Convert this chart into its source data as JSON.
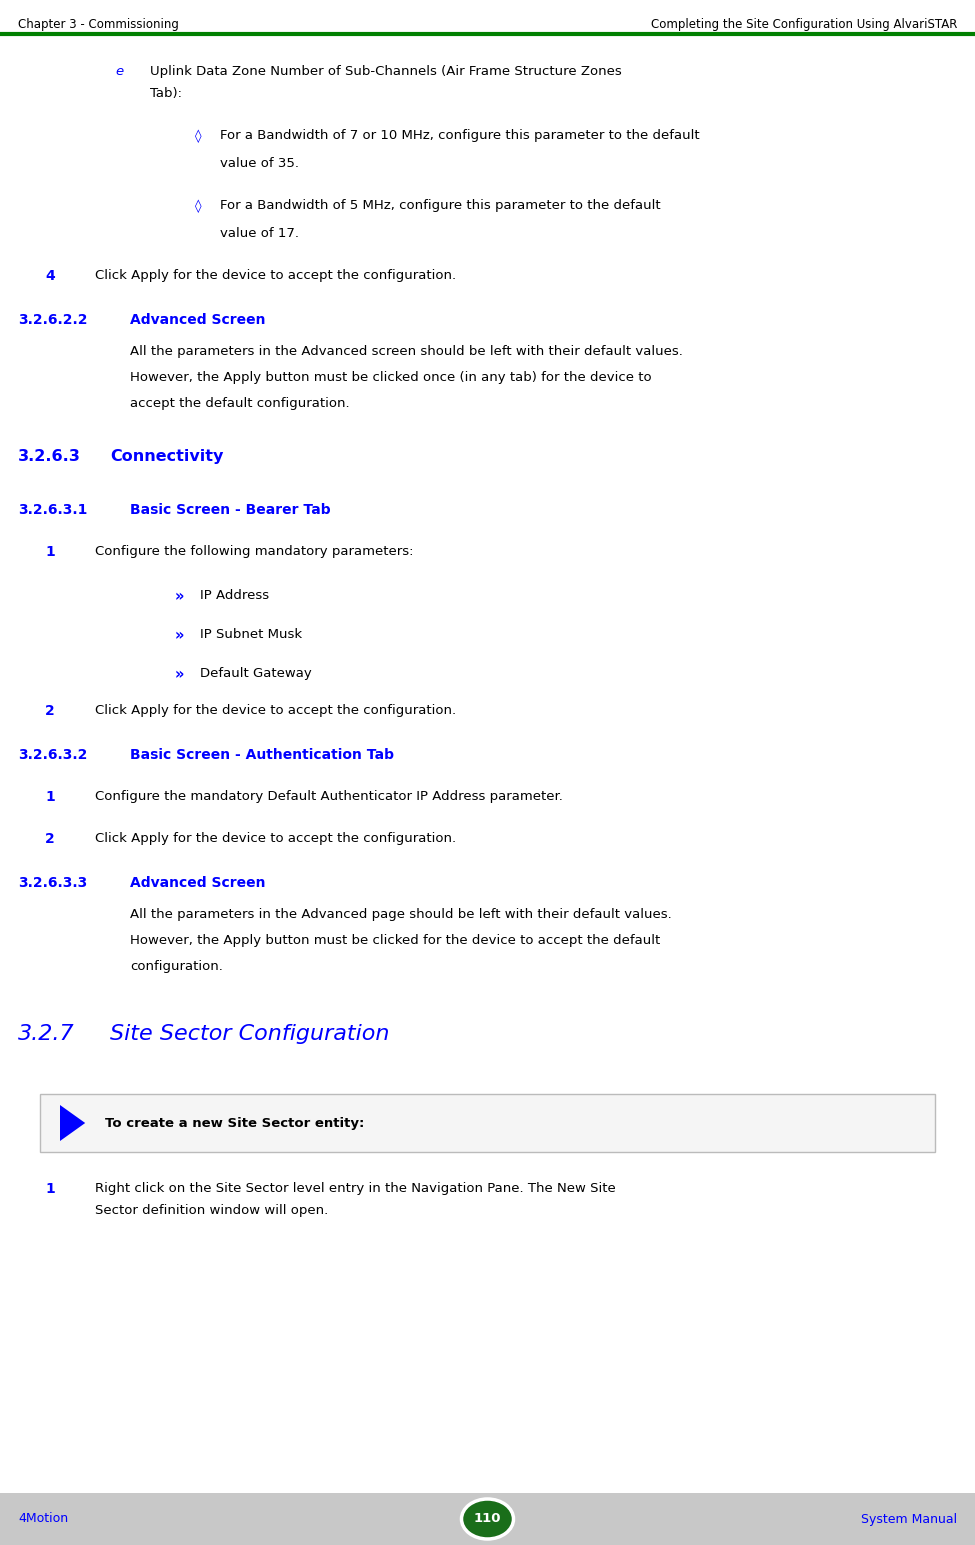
{
  "bg_color": "#ffffff",
  "header_line_color": "#008000",
  "header_left": "Chapter 3 - Commissioning",
  "header_right": "Completing the Site Configuration Using AlvariSTAR",
  "footer_left": "4Motion",
  "footer_center": "110",
  "footer_right": "System Manual",
  "footer_bg": "#c8c8c8",
  "blue_color": "#0000ff",
  "black_color": "#000000",
  "green_color": "#1a6e1a",
  "content": [
    {
      "type": "bullet_e",
      "text_line1": "Uplink Data Zone Number of Sub-Channels (Air Frame Structure Zones",
      "text_line2": "Tab):"
    },
    {
      "type": "diamond_bullet",
      "text_line1": "For a Bandwidth of 7 or 10 MHz, configure this parameter to the default",
      "text_line2": "value of 35."
    },
    {
      "type": "diamond_bullet",
      "text_line1": "For a Bandwidth of 5 MHz, configure this parameter to the default",
      "text_line2": "value of 17."
    },
    {
      "type": "numbered",
      "num": "4",
      "text": "Click Apply for the device to accept the configuration."
    },
    {
      "type": "section_sub",
      "num": "3.2.6.2.2",
      "title": "Advanced Screen"
    },
    {
      "type": "body3",
      "lines": [
        "All the parameters in the Advanced screen should be left with their default values.",
        "However, the Apply button must be clicked once (in any tab) for the device to",
        "accept the default configuration."
      ]
    },
    {
      "type": "section_major",
      "num": "3.2.6.3",
      "title": "Connectivity"
    },
    {
      "type": "section_sub",
      "num": "3.2.6.3.1",
      "title": "Basic Screen - Bearer Tab"
    },
    {
      "type": "numbered",
      "num": "1",
      "text": "Configure the following mandatory parameters:"
    },
    {
      "type": "arrow_bullet",
      "text": "IP Address"
    },
    {
      "type": "arrow_bullet",
      "text": "IP Subnet Musk"
    },
    {
      "type": "arrow_bullet",
      "text": "Default Gateway"
    },
    {
      "type": "numbered",
      "num": "2",
      "text": "Click Apply for the device to accept the configuration."
    },
    {
      "type": "section_sub",
      "num": "3.2.6.3.2",
      "title": "Basic Screen - Authentication Tab"
    },
    {
      "type": "numbered",
      "num": "1",
      "text": "Configure the mandatory Default Authenticator IP Address parameter."
    },
    {
      "type": "numbered",
      "num": "2",
      "text": "Click Apply for the device to accept the configuration."
    },
    {
      "type": "section_sub",
      "num": "3.2.6.3.3",
      "title": "Advanced Screen"
    },
    {
      "type": "body3",
      "lines": [
        "All the parameters in the Advanced page should be left with their default values.",
        "However, the Apply button must be clicked for the device to accept the default",
        "configuration."
      ]
    },
    {
      "type": "section_large",
      "num": "3.2.7",
      "title": "Site Sector Configuration"
    },
    {
      "type": "tip_box",
      "bold_text": "To create a new Site Sector entity:"
    },
    {
      "type": "numbered",
      "num": "1",
      "text_line1": "Right click on the Site Sector level entry in the Navigation Pane. The New Site",
      "text_line2": "Sector definition window will open."
    }
  ]
}
